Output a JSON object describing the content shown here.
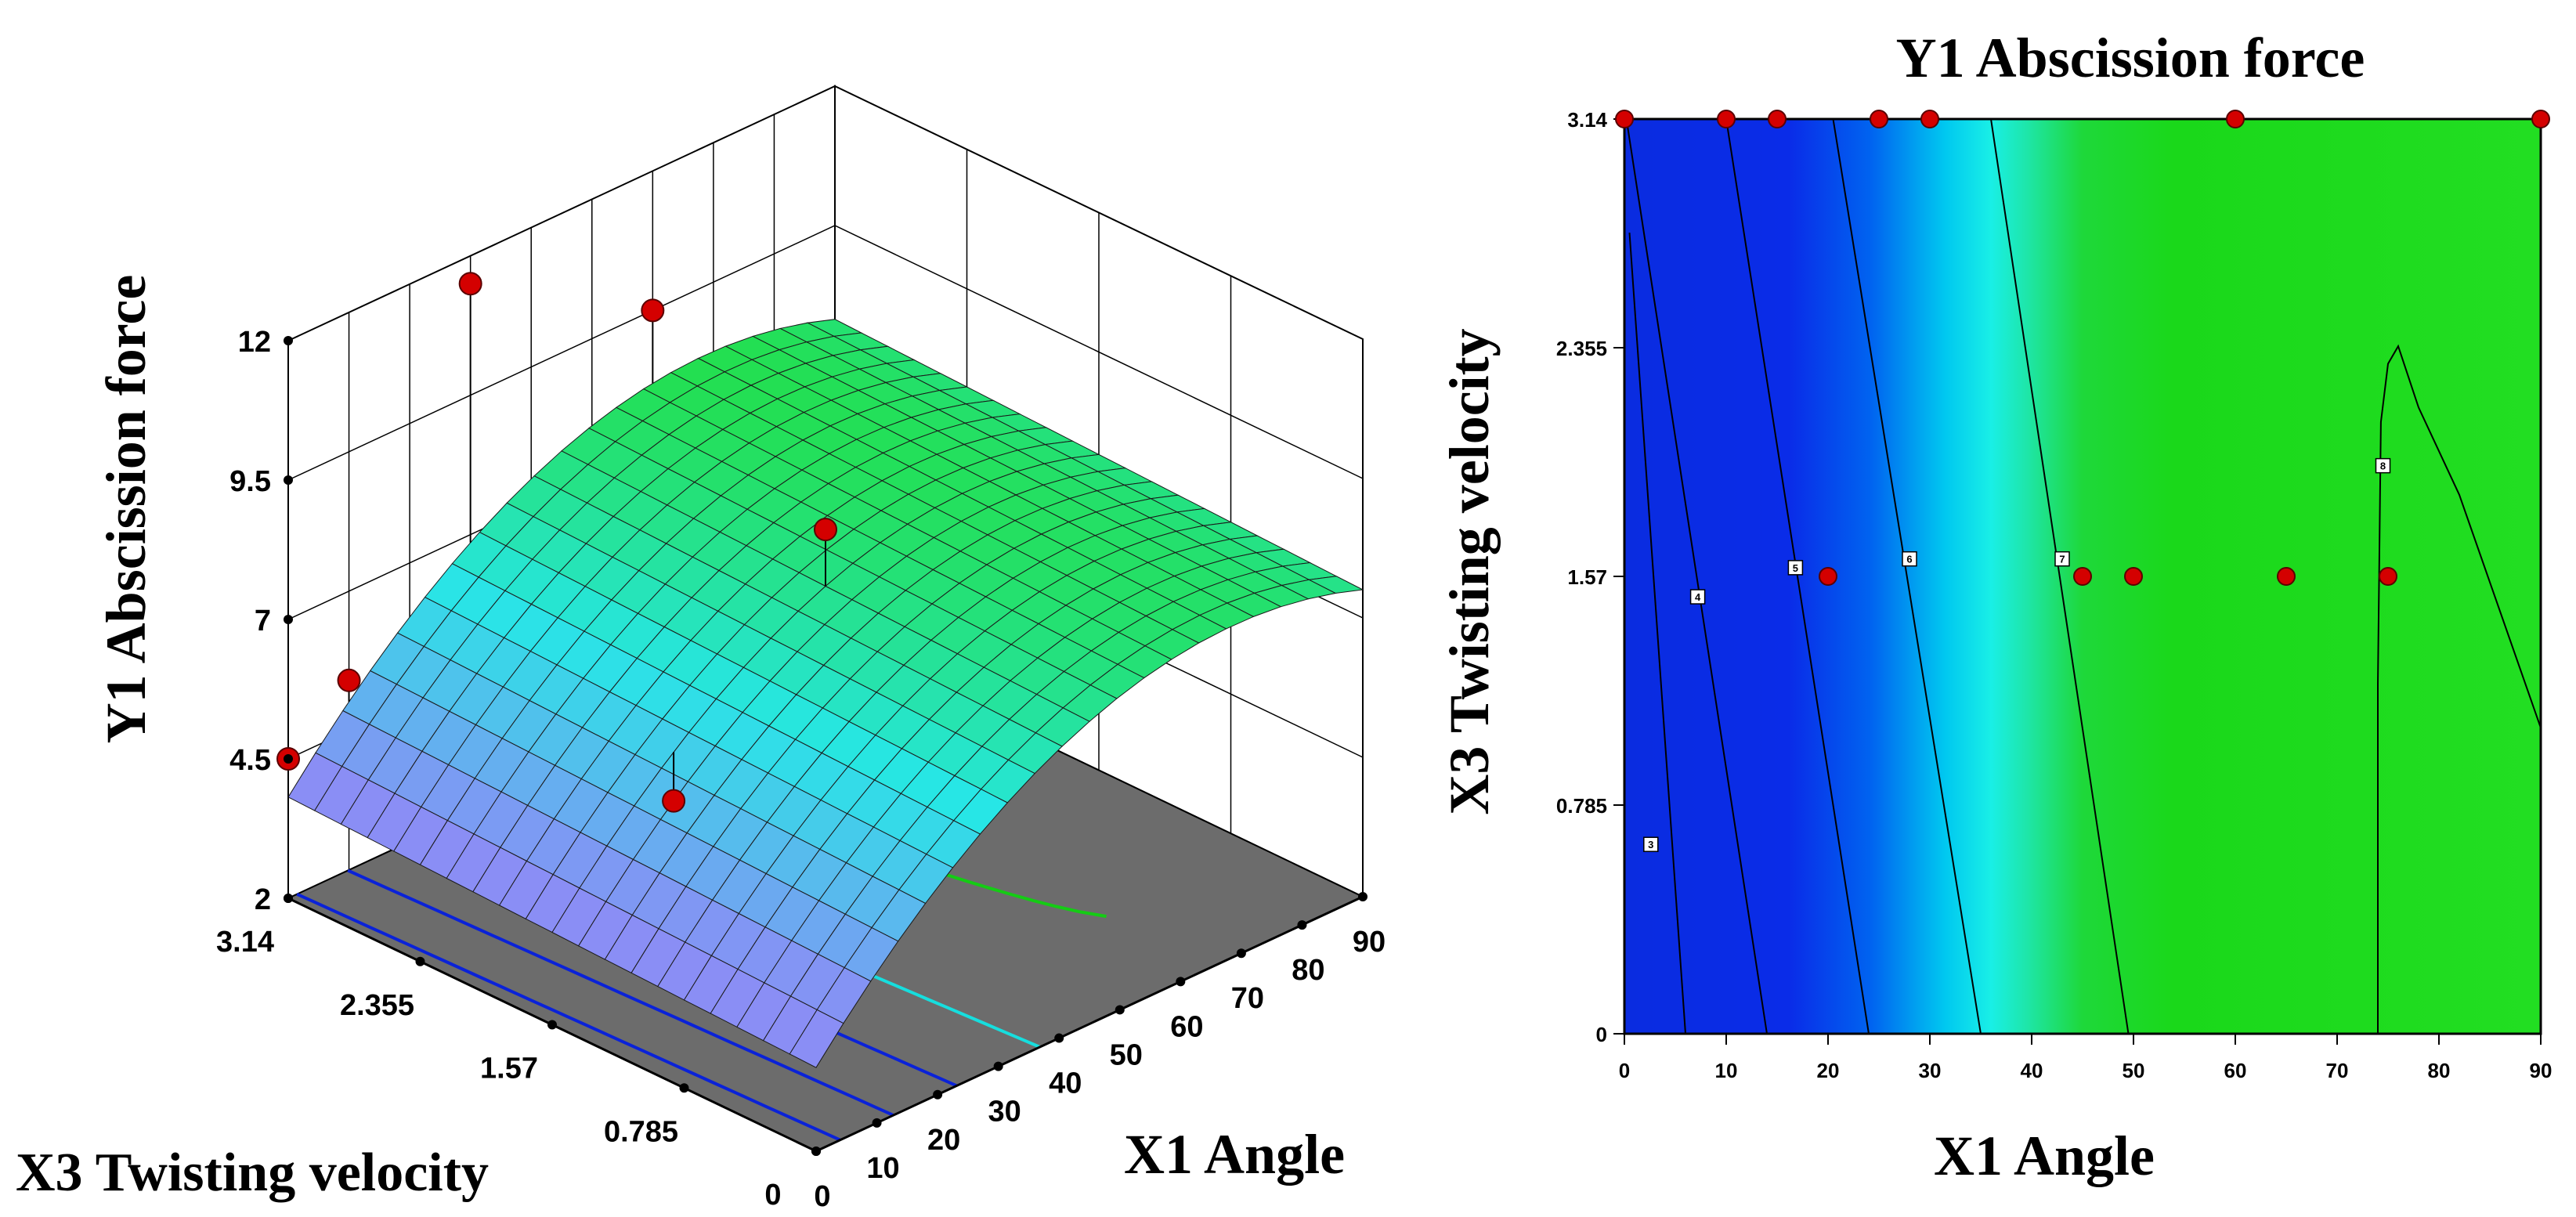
{
  "chart_data": [
    {
      "type": "surface",
      "ylabel": "Y1 Abscission force",
      "xlabel": "X1 Angle",
      "zlabel": "X3 Twisting velocity",
      "x_ticks": [
        "0",
        "10",
        "20",
        "30",
        "40",
        "50",
        "60",
        "70",
        "80",
        "90"
      ],
      "z_ticks": [
        "0",
        "0.785",
        "1.57",
        "2.355",
        "3.14"
      ],
      "y_ticks": [
        "2",
        "4.5",
        "7",
        "9.5",
        "12"
      ],
      "xlim": [
        0,
        90
      ],
      "zlim": [
        0,
        3.14
      ],
      "ylim": [
        2,
        12
      ],
      "model": {
        "a": 3.5,
        "b": 0.13,
        "c": -0.00095,
        "d": 0.1
      },
      "surface_grid": 20,
      "surface_colors": {
        "low": "#8a8ef5",
        "mid": "#27e6e6",
        "high": "#22dd22"
      },
      "floor_color": "#6c6c6c",
      "floor_contours": [
        {
          "level": 4,
          "color": "#0a22d8"
        },
        {
          "level": 5,
          "color": "#0a22d8"
        },
        {
          "level": 6,
          "color": "#0a22d8"
        },
        {
          "level": 7,
          "color": "#16dede"
        },
        {
          "level": 8,
          "color": "#14cc14"
        }
      ],
      "points": [
        {
          "x": 0,
          "z": 3.14,
          "y": 4.5
        },
        {
          "x": 10,
          "z": 3.14,
          "y": 5.4
        },
        {
          "x": 20,
          "z": 1.57,
          "y": 5.0
        },
        {
          "x": 30,
          "z": 3.14,
          "y": 11.5
        },
        {
          "x": 45,
          "z": 1.57,
          "y": 8.6
        },
        {
          "x": 60,
          "z": 3.14,
          "y": 9.5
        }
      ]
    },
    {
      "type": "contour",
      "title": "Y1 Abscission force",
      "xlabel": "X1 Angle",
      "ylabel": "X3 Twisting velocity",
      "x_ticks": [
        "0",
        "10",
        "20",
        "30",
        "40",
        "50",
        "60",
        "70",
        "80",
        "90"
      ],
      "y_ticks": [
        "0",
        "0.785",
        "1.57",
        "2.355",
        "3.14"
      ],
      "xlim": [
        0,
        90
      ],
      "ylim": [
        0,
        3.14
      ],
      "contour_levels": [
        "3",
        "4",
        "5",
        "6",
        "7",
        "8"
      ],
      "points": [
        {
          "x": 0,
          "y": 3.14
        },
        {
          "x": 10,
          "y": 3.14
        },
        {
          "x": 15,
          "y": 3.14
        },
        {
          "x": 25,
          "y": 3.14
        },
        {
          "x": 30,
          "y": 3.14
        },
        {
          "x": 60,
          "y": 3.14
        },
        {
          "x": 90,
          "y": 3.14
        },
        {
          "x": 20,
          "y": 1.57
        },
        {
          "x": 45,
          "y": 1.57
        },
        {
          "x": 50,
          "y": 1.57
        },
        {
          "x": 65,
          "y": 1.57
        },
        {
          "x": 75,
          "y": 1.57
        }
      ]
    }
  ]
}
